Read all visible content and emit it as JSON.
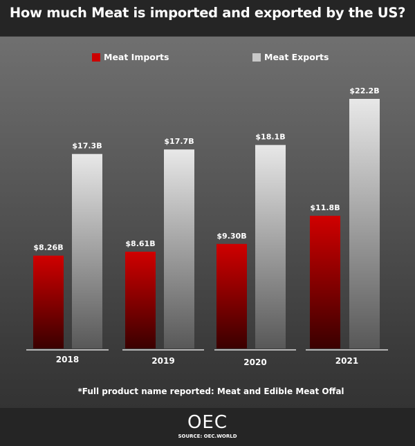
{
  "chart_data": {
    "type": "bar",
    "title": "How much Meat is imported and exported by the US?",
    "categories": [
      "2018",
      "2019",
      "2020",
      "2021"
    ],
    "series": [
      {
        "name": "Meat Imports",
        "values": [
          8.26,
          8.61,
          9.3,
          11.8
        ],
        "labels": [
          "$8.26B",
          "$8.61B",
          "$9.30B",
          "$11.8B"
        ],
        "color": "#cc0000"
      },
      {
        "name": "Meat Exports",
        "values": [
          17.3,
          17.7,
          18.1,
          22.2
        ],
        "labels": [
          "$17.3B",
          "$17.7B",
          "$18.1B",
          "$22.2B"
        ],
        "color": "#e6e6e6"
      }
    ],
    "ylim": [
      0,
      22.2
    ],
    "legend": "top",
    "grid": false,
    "footnote": "*Full product name reported: Meat and Edible Meat Offal"
  },
  "footer": {
    "logo": "OEC",
    "source": "SOURCE: OEC.WORLD"
  }
}
